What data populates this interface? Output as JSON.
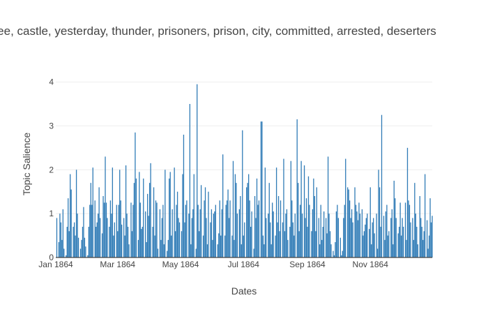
{
  "chart_data": {
    "type": "bar",
    "title": "yankee, castle, yesterday, thunder, prisoners, prison, city, committed, arrested, deserters",
    "xlabel": "Dates",
    "ylabel": "Topic Salience",
    "x_range": [
      "1864-01-01",
      "1864-12-31"
    ],
    "ylim": [
      0,
      4.2
    ],
    "x_ticks": [
      {
        "date": "1864-01-01",
        "label": "Jan 1864"
      },
      {
        "date": "1864-03-01",
        "label": "Mar 1864"
      },
      {
        "date": "1864-05-01",
        "label": "May 1864"
      },
      {
        "date": "1864-07-01",
        "label": "Jul 1864"
      },
      {
        "date": "1864-09-01",
        "label": "Sep 1864"
      },
      {
        "date": "1864-11-01",
        "label": "Nov 1864"
      }
    ],
    "y_ticks": [
      0,
      1,
      2,
      3,
      4
    ],
    "grid": "horizontal",
    "bar_color": "#2f7bb6",
    "x": [
      "1864-01-02",
      "1864-01-04",
      "1864-01-05",
      "1864-01-06",
      "1864-01-07",
      "1864-01-08",
      "1864-01-09",
      "1864-01-11",
      "1864-01-12",
      "1864-01-13",
      "1864-01-14",
      "1864-01-15",
      "1864-01-16",
      "1864-01-18",
      "1864-01-19",
      "1864-01-20",
      "1864-01-21",
      "1864-01-22",
      "1864-01-23",
      "1864-01-25",
      "1864-01-26",
      "1864-01-27",
      "1864-01-28",
      "1864-01-29",
      "1864-01-30",
      "1864-02-01",
      "1864-02-02",
      "1864-02-03",
      "1864-02-04",
      "1864-02-05",
      "1864-02-06",
      "1864-02-08",
      "1864-02-09",
      "1864-02-10",
      "1864-02-11",
      "1864-02-12",
      "1864-02-13",
      "1864-02-15",
      "1864-02-16",
      "1864-02-17",
      "1864-02-18",
      "1864-02-19",
      "1864-02-20",
      "1864-02-22",
      "1864-02-23",
      "1864-02-24",
      "1864-02-25",
      "1864-02-26",
      "1864-02-27",
      "1864-02-29",
      "1864-03-01",
      "1864-03-02",
      "1864-03-03",
      "1864-03-04",
      "1864-03-05",
      "1864-03-07",
      "1864-03-08",
      "1864-03-09",
      "1864-03-10",
      "1864-03-11",
      "1864-03-12",
      "1864-03-14",
      "1864-03-15",
      "1864-03-16",
      "1864-03-17",
      "1864-03-18",
      "1864-03-19",
      "1864-03-21",
      "1864-03-22",
      "1864-03-23",
      "1864-03-24",
      "1864-03-25",
      "1864-03-26",
      "1864-03-28",
      "1864-03-29",
      "1864-03-30",
      "1864-03-31",
      "1864-04-01",
      "1864-04-02",
      "1864-04-04",
      "1864-04-05",
      "1864-04-06",
      "1864-04-07",
      "1864-04-08",
      "1864-04-09",
      "1864-04-11",
      "1864-04-12",
      "1864-04-13",
      "1864-04-14",
      "1864-04-15",
      "1864-04-16",
      "1864-04-18",
      "1864-04-19",
      "1864-04-20",
      "1864-04-21",
      "1864-04-22",
      "1864-04-23",
      "1864-04-25",
      "1864-04-26",
      "1864-04-27",
      "1864-04-28",
      "1864-04-29",
      "1864-04-30",
      "1864-05-02",
      "1864-05-03",
      "1864-05-04",
      "1864-05-05",
      "1864-05-06",
      "1864-05-07",
      "1864-05-09",
      "1864-05-10",
      "1864-05-11",
      "1864-05-12",
      "1864-05-13",
      "1864-05-14",
      "1864-05-16",
      "1864-05-17",
      "1864-05-18",
      "1864-05-19",
      "1864-05-20",
      "1864-05-21",
      "1864-05-23",
      "1864-05-24",
      "1864-05-25",
      "1864-05-26",
      "1864-05-27",
      "1864-05-28",
      "1864-05-30",
      "1864-05-31",
      "1864-06-01",
      "1864-06-02",
      "1864-06-03",
      "1864-06-04",
      "1864-06-06",
      "1864-06-07",
      "1864-06-08",
      "1864-06-09",
      "1864-06-10",
      "1864-06-11",
      "1864-06-13",
      "1864-06-14",
      "1864-06-15",
      "1864-06-16",
      "1864-06-17",
      "1864-06-18",
      "1864-06-20",
      "1864-06-21",
      "1864-06-22",
      "1864-06-23",
      "1864-06-24",
      "1864-06-25",
      "1864-06-27",
      "1864-06-28",
      "1864-06-29",
      "1864-06-30",
      "1864-07-01",
      "1864-07-02",
      "1864-07-04",
      "1864-07-05",
      "1864-07-06",
      "1864-07-07",
      "1864-07-08",
      "1864-07-09",
      "1864-07-11",
      "1864-07-12",
      "1864-07-13",
      "1864-07-14",
      "1864-07-15",
      "1864-07-16",
      "1864-07-18",
      "1864-07-19",
      "1864-07-20",
      "1864-07-21",
      "1864-07-22",
      "1864-07-23",
      "1864-07-25",
      "1864-07-26",
      "1864-07-27",
      "1864-07-28",
      "1864-07-29",
      "1864-07-30",
      "1864-08-01",
      "1864-08-02",
      "1864-08-03",
      "1864-08-04",
      "1864-08-05",
      "1864-08-06",
      "1864-08-08",
      "1864-08-09",
      "1864-08-10",
      "1864-08-11",
      "1864-08-12",
      "1864-08-13",
      "1864-08-15",
      "1864-08-16",
      "1864-08-17",
      "1864-08-18",
      "1864-08-19",
      "1864-08-20",
      "1864-08-22",
      "1864-08-23",
      "1864-08-24",
      "1864-08-25",
      "1864-08-26",
      "1864-08-27",
      "1864-08-29",
      "1864-08-30",
      "1864-08-31",
      "1864-09-01",
      "1864-09-02",
      "1864-09-03",
      "1864-09-05",
      "1864-09-06",
      "1864-09-07",
      "1864-09-08",
      "1864-09-09",
      "1864-09-10",
      "1864-09-12",
      "1864-09-13",
      "1864-09-14",
      "1864-09-15",
      "1864-09-16",
      "1864-09-17",
      "1864-09-19",
      "1864-09-20",
      "1864-09-21",
      "1864-09-22",
      "1864-09-23",
      "1864-09-24",
      "1864-09-26",
      "1864-09-27",
      "1864-09-28",
      "1864-09-29",
      "1864-09-30",
      "1864-10-01",
      "1864-10-03",
      "1864-10-04",
      "1864-10-05",
      "1864-10-06",
      "1864-10-07",
      "1864-10-08",
      "1864-10-10",
      "1864-10-11",
      "1864-10-12",
      "1864-10-13",
      "1864-10-14",
      "1864-10-15",
      "1864-10-17",
      "1864-10-18",
      "1864-10-19",
      "1864-10-20",
      "1864-10-21",
      "1864-10-22",
      "1864-10-24",
      "1864-10-25",
      "1864-10-26",
      "1864-10-27",
      "1864-10-28",
      "1864-10-29",
      "1864-10-31",
      "1864-11-01",
      "1864-11-02",
      "1864-11-03",
      "1864-11-04",
      "1864-11-05",
      "1864-11-07",
      "1864-11-08",
      "1864-11-09",
      "1864-11-10",
      "1864-11-11",
      "1864-11-12",
      "1864-11-14",
      "1864-11-15",
      "1864-11-16",
      "1864-11-17",
      "1864-11-18",
      "1864-11-19",
      "1864-11-21",
      "1864-11-22",
      "1864-11-23",
      "1864-11-24",
      "1864-11-25",
      "1864-11-26",
      "1864-11-28",
      "1864-11-29",
      "1864-11-30",
      "1864-12-01",
      "1864-12-02",
      "1864-12-03",
      "1864-12-05",
      "1864-12-06",
      "1864-12-07",
      "1864-12-08",
      "1864-12-09",
      "1864-12-10",
      "1864-12-12",
      "1864-12-13",
      "1864-12-14",
      "1864-12-15",
      "1864-12-16",
      "1864-12-17",
      "1864-12-19",
      "1864-12-20",
      "1864-12-21",
      "1864-12-22",
      "1864-12-23",
      "1864-12-24",
      "1864-12-26",
      "1864-12-27",
      "1864-12-28",
      "1864-12-29",
      "1864-12-30",
      "1864-12-31"
    ],
    "values": [
      0.9,
      0.35,
      1.0,
      0.8,
      0.4,
      1.1,
      0.2,
      0.05,
      0.7,
      1.35,
      0.6,
      1.9,
      1.55,
      0.7,
      0.8,
      0.5,
      2.0,
      1.0,
      0.45,
      0.2,
      0.4,
      0.7,
      1.15,
      0.45,
      0.25,
      0.05,
      0.7,
      1.2,
      1.7,
      1.2,
      2.05,
      1.3,
      0.7,
      0.8,
      1.0,
      1.6,
      0.9,
      0.55,
      1.4,
      1.25,
      2.3,
      1.25,
      0.9,
      0.7,
      1.3,
      1.0,
      2.05,
      0.5,
      0.8,
      1.2,
      0.6,
      1.2,
      2.0,
      1.3,
      0.75,
      0.9,
      0.5,
      2.1,
      1.0,
      0.7,
      0.3,
      1.25,
      0.6,
      1.2,
      1.7,
      2.85,
      1.8,
      0.4,
      1.95,
      1.25,
      0.65,
      0.7,
      1.8,
      1.05,
      0.35,
      1.45,
      0.95,
      1.7,
      2.15,
      0.7,
      1.6,
      0.5,
      1.3,
      1.25,
      0.2,
      1.1,
      0.4,
      0.9,
      1.2,
      0.3,
      2.0,
      0.15,
      0.4,
      1.8,
      1.95,
      0.5,
      1.1,
      2.05,
      0.6,
      1.2,
      1.5,
      0.9,
      0.8,
      0.6,
      1.9,
      2.8,
      0.8,
      1.2,
      1.3,
      1.0,
      3.5,
      0.3,
      0.9,
      1.1,
      1.9,
      0.2,
      3.95,
      1.2,
      0.6,
      1.1,
      1.65,
      0.5,
      1.3,
      1.6,
      0.9,
      0.3,
      1.5,
      0.8,
      1.1,
      0.4,
      1.0,
      1.05,
      1.2,
      0.3,
      0.55,
      1.3,
      0.5,
      1.1,
      2.35,
      0.5,
      1.2,
      1.3,
      1.55,
      0.9,
      1.3,
      0.5,
      2.2,
      0.4,
      1.9,
      1.7,
      1.0,
      1.1,
      1.4,
      0.3,
      2.9,
      0.5,
      0.8,
      1.6,
      1.7,
      1.9,
      1.3,
      0.7,
      1.05,
      0.2,
      1.4,
      0.9,
      1.8,
      1.2,
      1.3,
      3.1,
      3.1,
      0.5,
      0.3,
      2.05,
      0.9,
      1.0,
      1.7,
      0.8,
      0.3,
      1.25,
      1.05,
      0.5,
      2.05,
      0.8,
      1.4,
      0.6,
      1.3,
      0.8,
      2.25,
      0.6,
      1.0,
      1.1,
      0.4,
      0.7,
      2.2,
      1.3,
      0.8,
      0.5,
      1.0,
      3.15,
      1.7,
      0.6,
      1.2,
      2.2,
      1.0,
      2.1,
      0.9,
      1.35,
      0.7,
      1.85,
      1.2,
      0.6,
      1.1,
      1.8,
      1.4,
      0.6,
      1.6,
      0.9,
      0.3,
      1.2,
      0.4,
      0.7,
      1.05,
      0.9,
      0.55,
      2.3,
      1.0,
      0.6,
      0.3,
      0.15,
      0.05,
      0.35,
      1.05,
      1.2,
      0.9,
      0.45,
      0.05,
      0.15,
      0.9,
      1.2,
      2.25,
      1.6,
      1.55,
      1.3,
      0.9,
      1.1,
      0.8,
      1.6,
      1.2,
      1.05,
      0.85,
      1.25,
      1.0,
      1.1,
      0.5,
      0.6,
      0.75,
      0.9,
      1.0,
      0.65,
      1.6,
      0.3,
      0.8,
      0.9,
      0.55,
      1.0,
      0.2,
      2.0,
      1.6,
      0.7,
      3.25,
      0.95,
      0.4,
      1.05,
      1.2,
      0.5,
      0.6,
      0.9,
      1.1,
      0.3,
      1.75,
      1.35,
      0.9,
      0.55,
      0.7,
      1.25,
      0.5,
      0.9,
      0.7,
      1.25,
      0.4,
      2.5,
      1.3,
      1.2,
      0.8,
      0.9,
      0.4,
      1.7,
      1.0,
      0.7,
      0.3,
      1.4,
      0.9,
      0.7,
      0.4,
      0.6,
      1.9,
      0.85,
      0.2,
      0.5,
      1.35,
      0.8,
      0.95
    ]
  }
}
